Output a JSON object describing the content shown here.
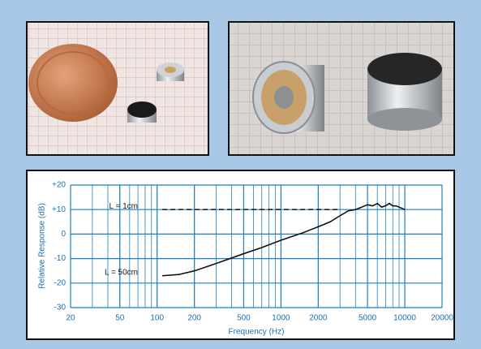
{
  "chart_data": {
    "type": "line",
    "xlabel": "Frequency (Hz)",
    "ylabel": "Relative Response (dB)",
    "xscale": "log",
    "xlim": [
      20,
      20000
    ],
    "ylim": [
      -30,
      20
    ],
    "xticks": [
      20,
      50,
      100,
      200,
      500,
      1000,
      2000,
      5000,
      10000,
      20000
    ],
    "yticks": [
      {
        "value": 20,
        "label": "+20"
      },
      {
        "value": 10,
        "label": "+10"
      },
      0,
      -10,
      -20,
      -30
    ],
    "grid": true,
    "grid_color": "#1e7fc0",
    "series": [
      {
        "name": "L = 1cm",
        "color": "#222222",
        "dashed": true,
        "x": [
          110,
          3000
        ],
        "values": [
          10,
          10
        ]
      },
      {
        "name": "L = 50cm",
        "color": "#111111",
        "dashed": false,
        "x": [
          110,
          150,
          200,
          300,
          500,
          700,
          1000,
          1500,
          2000,
          2500,
          3000,
          3500,
          4000,
          4500,
          5000,
          5500,
          6000,
          6500,
          7000,
          7500,
          8000,
          8500,
          9000,
          10000
        ],
        "values": [
          -17,
          -16.5,
          -15,
          -12,
          -8,
          -5.5,
          -2.5,
          0.5,
          3,
          5,
          7.5,
          9.5,
          10,
          11,
          12,
          11.5,
          12.5,
          11,
          11.5,
          12.5,
          11.5,
          11.5,
          11,
          10
        ]
      }
    ]
  }
}
